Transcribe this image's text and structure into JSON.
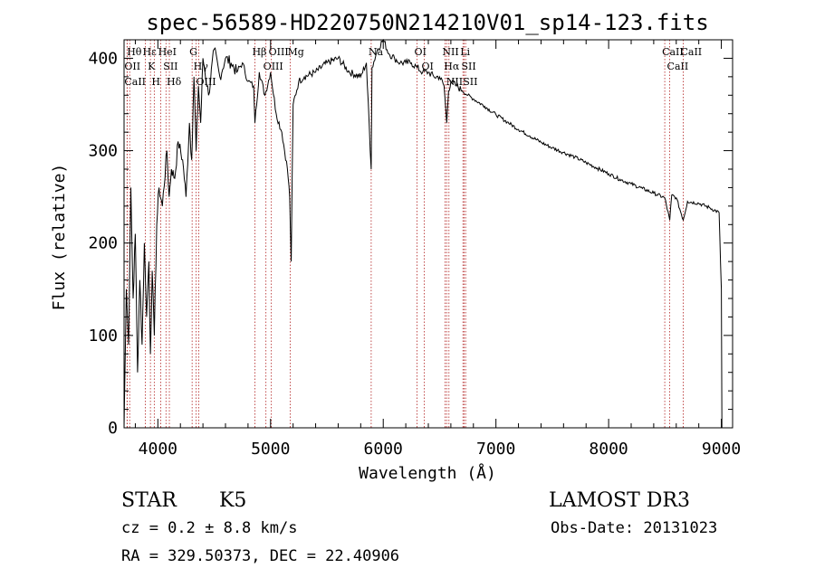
{
  "chart_data": {
    "type": "line",
    "title": "spec-56589-HD220750N214210V01_sp14-123.fits",
    "xlabel": "Wavelength (Å)",
    "ylabel": "Flux (relative)",
    "xlim": [
      3700,
      9100
    ],
    "ylim": [
      0,
      420
    ],
    "xticks": [
      4000,
      5000,
      6000,
      7000,
      8000,
      9000
    ],
    "xtick_labels": [
      "4000",
      "5000",
      "6000",
      "7000",
      "8000",
      "9000"
    ],
    "yticks": [
      0,
      100,
      200,
      300,
      400
    ],
    "ytick_labels": [
      "0",
      "100",
      "200",
      "300",
      "400"
    ],
    "grid": false,
    "series": [
      {
        "x": [
          3700,
          3720,
          3740,
          3760,
          3780,
          3800,
          3820,
          3840,
          3860,
          3880,
          3900,
          3920,
          3934,
          3950,
          3968,
          3990,
          4010,
          4040,
          4080,
          4100,
          4120,
          4150,
          4180,
          4220,
          4250,
          4280,
          4300,
          4320,
          4340,
          4360,
          4380,
          4400,
          4450,
          4500,
          4550,
          4600,
          4650,
          4700,
          4750,
          4800,
          4850,
          4861,
          4900,
          4950,
          5000,
          5050,
          5100,
          5150,
          5170,
          5183,
          5200,
          5250,
          5300,
          5400,
          5500,
          5600,
          5700,
          5800,
          5850,
          5893,
          5900,
          5950,
          6000,
          6050,
          6100,
          6150,
          6200,
          6250,
          6300,
          6350,
          6400,
          6450,
          6500,
          6540,
          6563,
          6580,
          6600,
          6650,
          6700,
          6750,
          6800,
          6900,
          7000,
          7100,
          7200,
          7300,
          7400,
          7500,
          7600,
          7700,
          7800,
          7900,
          8000,
          8100,
          8200,
          8300,
          8400,
          8498,
          8542,
          8560,
          8600,
          8662,
          8700,
          8800,
          8900,
          8980,
          9000,
          9005
        ],
        "y": [
          0,
          150,
          90,
          260,
          140,
          210,
          60,
          160,
          90,
          200,
          120,
          180,
          80,
          170,
          100,
          220,
          260,
          240,
          300,
          250,
          280,
          270,
          310,
          290,
          250,
          330,
          290,
          380,
          300,
          370,
          330,
          400,
          360,
          410,
          380,
          400,
          395,
          385,
          395,
          375,
          370,
          330,
          385,
          360,
          385,
          340,
          320,
          280,
          250,
          180,
          350,
          375,
          380,
          385,
          395,
          400,
          385,
          380,
          395,
          280,
          390,
          410,
          420,
          405,
          400,
          395,
          395,
          395,
          390,
          385,
          385,
          380,
          380,
          370,
          330,
          365,
          375,
          370,
          365,
          360,
          356,
          348,
          339,
          331,
          323,
          316,
          309,
          303,
          298,
          293,
          287,
          281,
          275,
          269,
          264,
          259,
          254,
          249,
          225,
          252,
          249,
          225,
          245,
          243,
          238,
          233,
          150,
          0
        ]
      }
    ],
    "line_markers": [
      {
        "w": 3750,
        "label": "Hθ"
      },
      {
        "w": 3727,
        "label": "OII"
      },
      {
        "w": 3727,
        "label": "CaII"
      },
      {
        "w": 3889,
        "label": "Hε"
      },
      {
        "w": 3934,
        "label": "K"
      },
      {
        "w": 3968,
        "label": "H"
      },
      {
        "w": 4026,
        "label": "HeI"
      },
      {
        "w": 4072,
        "label": "SII"
      },
      {
        "w": 4102,
        "label": "Hδ"
      },
      {
        "w": 4304,
        "label": "G"
      },
      {
        "w": 4340,
        "label": "Hγ"
      },
      {
        "w": 4363,
        "label": "OIII"
      },
      {
        "w": 4861,
        "label": "Hβ"
      },
      {
        "w": 4959,
        "label": "OIII"
      },
      {
        "w": 5007,
        "label": "OIII"
      },
      {
        "w": 5175,
        "label": "Mg"
      },
      {
        "w": 5893,
        "label": "Na"
      },
      {
        "w": 6300,
        "label": "OI"
      },
      {
        "w": 6364,
        "label": "OI"
      },
      {
        "w": 6548,
        "label": "NII"
      },
      {
        "w": 6563,
        "label": "Hα"
      },
      {
        "w": 6583,
        "label": "NII"
      },
      {
        "w": 6707,
        "label": "Li"
      },
      {
        "w": 6717,
        "label": "SII"
      },
      {
        "w": 6731,
        "label": "SII"
      },
      {
        "w": 8498,
        "label": "CaII"
      },
      {
        "w": 8542,
        "label": "CaII"
      },
      {
        "w": 8662,
        "label": "CaII"
      }
    ]
  },
  "info": {
    "class_label": "STAR",
    "subclass": "K5",
    "survey": "LAMOST DR3",
    "cz": "cz = 0.2 ± 8.8 km/s",
    "obs_date": "Obs-Date: 20131023",
    "coords": "RA = 329.50373, DEC =  22.40906"
  }
}
